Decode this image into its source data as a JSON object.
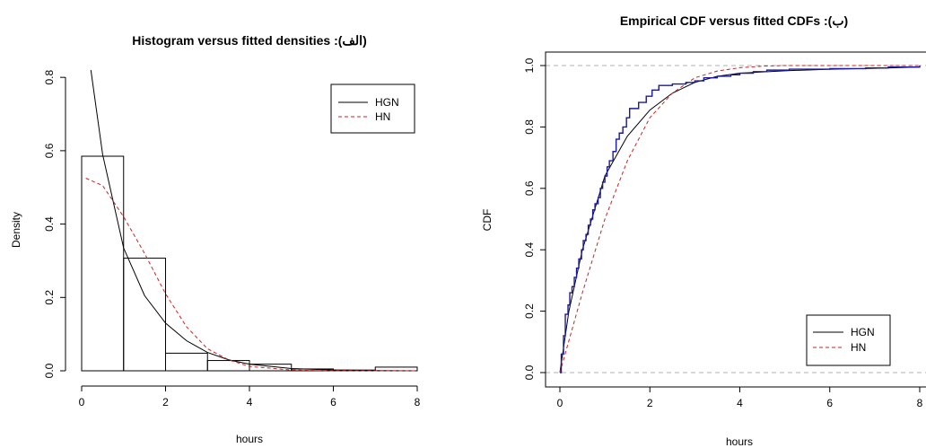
{
  "colors": {
    "hgn": "#000000",
    "hn": "#cc2222",
    "ecdf": "#1a1a99",
    "refline": "#b0b0b0"
  },
  "chart_data": [
    {
      "type": "bar",
      "title": "(الف): Histogram versus fitted densities",
      "xlabel": "hours",
      "ylabel": "Density",
      "xlim": [
        0,
        8
      ],
      "ylim": [
        0,
        0.82
      ],
      "xticks": [
        0,
        2,
        4,
        6,
        8
      ],
      "yticks": [
        0.0,
        0.2,
        0.4,
        0.6,
        0.8
      ],
      "bins": [
        {
          "x0": 0,
          "x1": 1,
          "density": 0.585
        },
        {
          "x0": 1,
          "x1": 2,
          "density": 0.307
        },
        {
          "x0": 2,
          "x1": 3,
          "density": 0.048
        },
        {
          "x0": 3,
          "x1": 4,
          "density": 0.028
        },
        {
          "x0": 4,
          "x1": 5,
          "density": 0.018
        },
        {
          "x0": 5,
          "x1": 6,
          "density": 0.005
        },
        {
          "x0": 6,
          "x1": 7,
          "density": 0.002
        },
        {
          "x0": 7,
          "x1": 8,
          "density": 0.01
        }
      ],
      "series": [
        {
          "name": "HGN",
          "style": "solid",
          "x": [
            0.22,
            0.5,
            1.0,
            1.5,
            2.0,
            2.5,
            3.0,
            3.5,
            4.0,
            5.0,
            6.0,
            7.0,
            8.0
          ],
          "y": [
            0.82,
            0.59,
            0.335,
            0.205,
            0.13,
            0.082,
            0.05,
            0.03,
            0.018,
            0.006,
            0.002,
            0.0005,
            0.0
          ]
        },
        {
          "name": "HN",
          "style": "dashed",
          "x": [
            0.1,
            0.5,
            1.0,
            1.5,
            2.0,
            2.5,
            3.0,
            3.5,
            4.0,
            5.0,
            6.0,
            8.0
          ],
          "y": [
            0.525,
            0.505,
            0.42,
            0.32,
            0.21,
            0.12,
            0.06,
            0.03,
            0.012,
            0.002,
            0.0002,
            0.0
          ]
        }
      ],
      "legend": {
        "position": "top-right",
        "entries": [
          "HGN",
          "HN"
        ]
      }
    },
    {
      "type": "line",
      "title": "(ب): Empirical CDF versus fitted CDFs",
      "xlabel": "hours",
      "ylabel": "CDF",
      "xlim": [
        0,
        8
      ],
      "ylim": [
        0,
        1
      ],
      "xticks": [
        0,
        2,
        4,
        6,
        8
      ],
      "yticks": [
        0.0,
        0.2,
        0.4,
        0.6,
        0.8,
        1.0
      ],
      "reference_lines": [
        0,
        1
      ],
      "ecdf": {
        "x": [
          0,
          0.03,
          0.08,
          0.12,
          0.18,
          0.22,
          0.27,
          0.32,
          0.37,
          0.42,
          0.48,
          0.52,
          0.58,
          0.63,
          0.68,
          0.73,
          0.78,
          0.85,
          0.9,
          0.95,
          1.0,
          1.05,
          1.1,
          1.18,
          1.25,
          1.32,
          1.4,
          1.48,
          1.55,
          1.75,
          1.92,
          2.05,
          2.2,
          2.5,
          2.8,
          3.0,
          3.2,
          3.5,
          3.8,
          4.0,
          4.3,
          4.6,
          5.1,
          6.0,
          6.8,
          7.3,
          8.0
        ],
        "y": [
          0,
          0.06,
          0.12,
          0.19,
          0.22,
          0.26,
          0.28,
          0.31,
          0.34,
          0.37,
          0.4,
          0.43,
          0.45,
          0.48,
          0.5,
          0.53,
          0.55,
          0.57,
          0.6,
          0.62,
          0.64,
          0.67,
          0.69,
          0.72,
          0.76,
          0.78,
          0.8,
          0.83,
          0.86,
          0.88,
          0.9,
          0.92,
          0.935,
          0.94,
          0.945,
          0.95,
          0.96,
          0.965,
          0.97,
          0.975,
          0.98,
          0.985,
          0.988,
          0.99,
          0.992,
          0.995,
          1.0
        ]
      },
      "series": [
        {
          "name": "HGN",
          "style": "solid",
          "x": [
            0,
            0.2,
            0.5,
            1.0,
            1.5,
            2.0,
            2.5,
            3.0,
            3.5,
            4.0,
            5.0,
            6.0,
            7.0,
            8.0
          ],
          "y": [
            0,
            0.2,
            0.4,
            0.64,
            0.77,
            0.855,
            0.91,
            0.945,
            0.965,
            0.975,
            0.983,
            0.988,
            0.991,
            0.995
          ]
        },
        {
          "name": "HN",
          "style": "dashed",
          "x": [
            0,
            0.25,
            0.5,
            1.0,
            1.5,
            2.0,
            2.5,
            3.0,
            3.5,
            4.0,
            4.5,
            5.0,
            6.0,
            7.0,
            8.0
          ],
          "y": [
            0,
            0.13,
            0.26,
            0.5,
            0.69,
            0.83,
            0.91,
            0.96,
            0.982,
            0.993,
            0.998,
            1.0,
            1.0,
            1.0,
            1.0
          ]
        }
      ],
      "legend": {
        "position": "bottom-right",
        "entries": [
          "HGN",
          "HN"
        ]
      }
    }
  ]
}
